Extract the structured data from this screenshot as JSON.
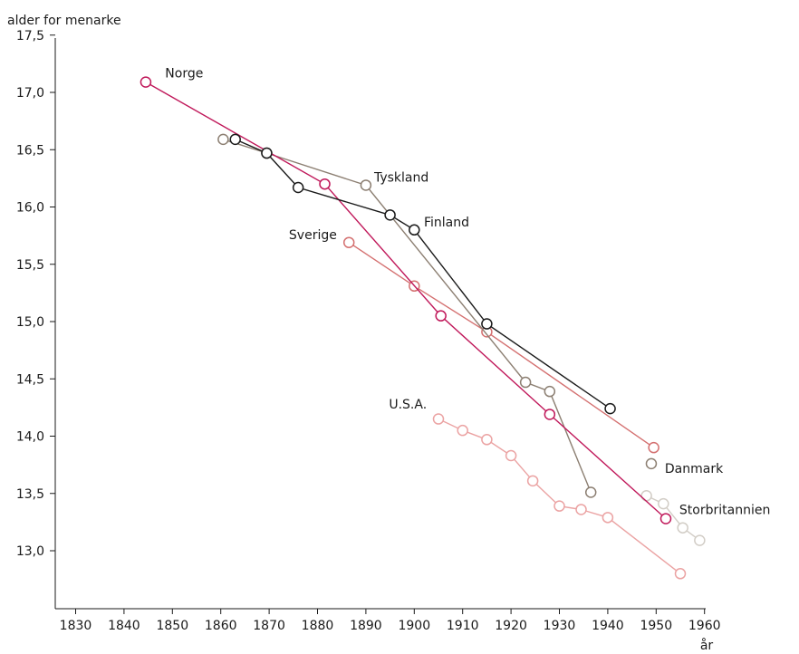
{
  "chart_data": {
    "type": "scatter",
    "title": "",
    "ylabel": "alder for menarke",
    "xlabel": "år",
    "xlim": [
      1825,
      1960
    ],
    "ylim": [
      12.5,
      17.5
    ],
    "xticks": [
      "1830",
      "1840",
      "1850",
      "1860",
      "1870",
      "1880",
      "1890",
      "1900",
      "1910",
      "1920",
      "1930",
      "1940",
      "1950",
      "1960"
    ],
    "yticks": [
      "13,0",
      "13,5",
      "14,0",
      "14,5",
      "15,0",
      "15,5",
      "16,0",
      "16,5",
      "17,0",
      "17,5"
    ],
    "grid": false,
    "legend": "none",
    "series": [
      {
        "name": "Tyskland",
        "color": "#8c7f72",
        "points": [
          [
            1860.5,
            16.59
          ],
          [
            1869.5,
            16.47
          ],
          [
            1890,
            16.19
          ],
          [
            1923,
            14.47
          ],
          [
            1928,
            14.39
          ],
          [
            1936.5,
            13.51
          ]
        ]
      },
      {
        "name": "Finland",
        "color": "#1a1a1a",
        "points": [
          [
            1863,
            16.59
          ],
          [
            1869.5,
            16.47
          ],
          [
            1876,
            16.17
          ],
          [
            1895,
            15.93
          ],
          [
            1900,
            15.8
          ],
          [
            1915,
            14.98
          ],
          [
            1940.5,
            14.24
          ]
        ]
      },
      {
        "name": "Norge",
        "color": "#c0185a",
        "points": [
          [
            1844.5,
            17.09
          ],
          [
            1881.5,
            16.2
          ],
          [
            1905.5,
            15.05
          ],
          [
            1928,
            14.19
          ],
          [
            1952,
            13.28
          ]
        ]
      },
      {
        "name": "Sverige",
        "color": "#d47070",
        "points": [
          [
            1886.5,
            15.69
          ],
          [
            1900,
            15.31
          ],
          [
            1915,
            14.91
          ],
          [
            1949.5,
            13.9
          ]
        ]
      },
      {
        "name": "Danmark",
        "color": "#8c7f72",
        "points": [
          [
            1949,
            13.76
          ]
        ]
      },
      {
        "name": "U.S.A.",
        "color": "#eba3a3",
        "points": [
          [
            1905,
            14.15
          ],
          [
            1910,
            14.05
          ],
          [
            1915,
            13.97
          ],
          [
            1920,
            13.83
          ],
          [
            1924.5,
            13.61
          ],
          [
            1930,
            13.39
          ],
          [
            1934.5,
            13.36
          ],
          [
            1940,
            13.29
          ],
          [
            1955,
            12.8
          ]
        ]
      },
      {
        "name": "Storbritannien",
        "color": "#d2cdc6",
        "points": [
          [
            1948,
            13.48
          ],
          [
            1951.5,
            13.41
          ],
          [
            1955.5,
            13.2
          ],
          [
            1959,
            13.09
          ]
        ]
      }
    ]
  }
}
